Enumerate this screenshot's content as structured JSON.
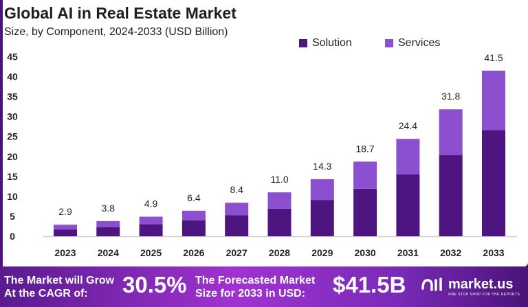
{
  "chart_data": {
    "type": "bar",
    "stacked": true,
    "title": "Global AI in Real Estate Market",
    "subtitle": "Size, by Component, 2024-2033 (USD Billion)",
    "categories": [
      "2023",
      "2024",
      "2025",
      "2026",
      "2027",
      "2028",
      "2029",
      "2030",
      "2031",
      "2032",
      "2033"
    ],
    "series": [
      {
        "name": "Solution",
        "color": "#4e1580",
        "values": [
          1.7,
          2.3,
          3.0,
          4.0,
          5.3,
          6.9,
          9.1,
          11.9,
          15.5,
          20.3,
          26.6
        ]
      },
      {
        "name": "Services",
        "color": "#8c4fd0",
        "values": [
          1.2,
          1.5,
          1.9,
          2.4,
          3.1,
          4.1,
          5.2,
          6.8,
          8.9,
          11.5,
          14.9
        ]
      }
    ],
    "totals": [
      "2.9",
      "3.8",
      "4.9",
      "6.4",
      "8.4",
      "11.0",
      "14.3",
      "18.7",
      "24.4",
      "31.8",
      "41.5"
    ],
    "ylim": [
      0,
      45
    ],
    "yticks": [
      "0",
      "5",
      "10",
      "15",
      "20",
      "25",
      "30",
      "35",
      "40",
      "45"
    ],
    "grid": false,
    "legend": "top-right"
  },
  "banner": {
    "cagr_label_1": "The Market will Grow",
    "cagr_label_2": "At the CAGR of:",
    "cagr_value": "30.5%",
    "forecast_label_1": "The Forecasted Market",
    "forecast_label_2": "Size for 2033 in USD:",
    "forecast_value": "$41.5B",
    "logo": "market.us",
    "logo_tagline": "ONE STOP SHOP FOR THE REPORTS"
  }
}
